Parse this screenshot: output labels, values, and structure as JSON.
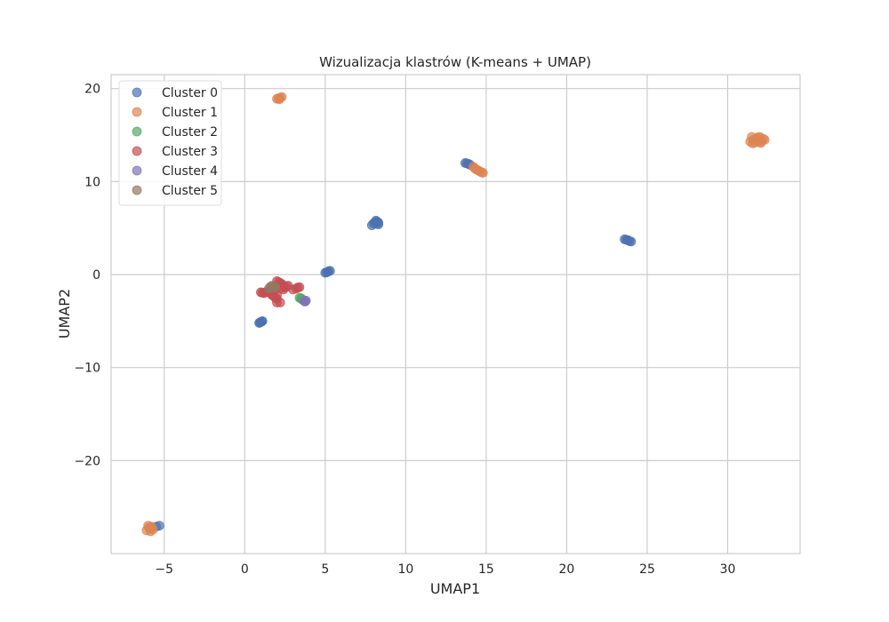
{
  "chart_data": {
    "type": "scatter",
    "title": "Wizualizacja klastrów (K-means + UMAP)",
    "xlabel": "UMAP1",
    "ylabel": "UMAP2",
    "xlim": [
      -8.3,
      34.5
    ],
    "ylim": [
      -30.0,
      21.5
    ],
    "xticks": [
      -5,
      0,
      5,
      10,
      15,
      20,
      25,
      30
    ],
    "yticks": [
      -20,
      -10,
      0,
      10,
      20
    ],
    "xtick_labels": [
      "−5",
      "0",
      "5",
      "10",
      "15",
      "20",
      "25",
      "30"
    ],
    "ytick_labels": [
      "−20",
      "−10",
      "0",
      "10",
      "20"
    ],
    "grid": true,
    "legend_position": "top-left",
    "series": [
      {
        "name": "Cluster 0",
        "color": "#4c72b0",
        "points": [
          [
            -5.3,
            -27.0
          ],
          [
            -5.5,
            -27.1
          ],
          [
            0.9,
            -5.2
          ],
          [
            1.0,
            -5.1
          ],
          [
            1.1,
            -5.0
          ],
          [
            0.95,
            -5.15
          ],
          [
            1.05,
            -5.05
          ],
          [
            5.0,
            0.2
          ],
          [
            5.1,
            0.25
          ],
          [
            5.2,
            0.35
          ],
          [
            5.3,
            0.4
          ],
          [
            5.15,
            0.3
          ],
          [
            7.9,
            5.3
          ],
          [
            8.0,
            5.5
          ],
          [
            8.1,
            5.6
          ],
          [
            8.2,
            5.7
          ],
          [
            8.3,
            5.6
          ],
          [
            8.25,
            5.5
          ],
          [
            8.15,
            5.8
          ],
          [
            8.3,
            5.4
          ],
          [
            13.7,
            12.0
          ],
          [
            13.8,
            11.95
          ],
          [
            13.9,
            11.9
          ],
          [
            14.0,
            11.8
          ],
          [
            23.6,
            3.8
          ],
          [
            23.7,
            3.75
          ],
          [
            23.8,
            3.7
          ],
          [
            23.9,
            3.6
          ],
          [
            24.0,
            3.55
          ]
        ]
      },
      {
        "name": "Cluster 1",
        "color": "#dd8452",
        "points": [
          [
            -6.1,
            -27.5
          ],
          [
            -5.9,
            -27.3
          ],
          [
            -5.8,
            -27.1
          ],
          [
            -6.0,
            -27.0
          ],
          [
            -5.7,
            -27.4
          ],
          [
            -5.85,
            -27.6
          ],
          [
            -5.95,
            -27.2
          ],
          [
            2.0,
            18.9
          ],
          [
            2.1,
            18.95
          ],
          [
            2.2,
            19.0
          ],
          [
            2.3,
            19.1
          ],
          [
            2.15,
            18.85
          ],
          [
            14.2,
            11.6
          ],
          [
            14.3,
            11.4
          ],
          [
            14.4,
            11.3
          ],
          [
            14.5,
            11.2
          ],
          [
            14.6,
            11.1
          ],
          [
            14.7,
            11.0
          ],
          [
            14.8,
            10.95
          ],
          [
            31.4,
            14.3
          ],
          [
            31.5,
            14.8
          ],
          [
            31.6,
            14.5
          ],
          [
            31.7,
            14.2
          ],
          [
            31.8,
            14.6
          ],
          [
            31.9,
            14.4
          ],
          [
            32.0,
            14.8
          ],
          [
            32.1,
            14.3
          ],
          [
            32.2,
            14.6
          ],
          [
            32.3,
            14.5
          ],
          [
            31.55,
            14.1
          ],
          [
            31.85,
            14.75
          ],
          [
            32.05,
            14.15
          ]
        ]
      },
      {
        "name": "Cluster 2",
        "color": "#55a868",
        "points": [
          [
            3.4,
            -2.5
          ],
          [
            3.5,
            -2.6
          ],
          [
            3.55,
            -2.65
          ],
          [
            3.6,
            -2.7
          ],
          [
            3.5,
            -2.55
          ]
        ]
      },
      {
        "name": "Cluster 3",
        "color": "#c44e52",
        "points": [
          [
            1.0,
            -1.9
          ],
          [
            1.1,
            -1.95
          ],
          [
            1.2,
            -2.0
          ],
          [
            1.3,
            -1.9
          ],
          [
            1.5,
            -1.8
          ],
          [
            1.6,
            -2.0
          ],
          [
            1.7,
            -2.2
          ],
          [
            1.8,
            -2.3
          ],
          [
            1.9,
            -2.5
          ],
          [
            2.0,
            -2.6
          ],
          [
            2.0,
            -3.0
          ],
          [
            2.2,
            -3.0
          ],
          [
            2.0,
            -0.7
          ],
          [
            2.1,
            -0.8
          ],
          [
            2.2,
            -0.9
          ],
          [
            2.3,
            -1.0
          ],
          [
            2.4,
            -1.2
          ],
          [
            2.5,
            -1.4
          ],
          [
            2.6,
            -1.3
          ],
          [
            2.7,
            -1.2
          ],
          [
            2.2,
            -1.5
          ],
          [
            2.4,
            -1.6
          ],
          [
            3.0,
            -1.6
          ],
          [
            3.2,
            -1.5
          ],
          [
            3.3,
            -1.4
          ],
          [
            3.4,
            -1.35
          ],
          [
            1.85,
            -1.6
          ],
          [
            2.0,
            -2.2
          ]
        ]
      },
      {
        "name": "Cluster 4",
        "color": "#8172b3",
        "points": [
          [
            3.7,
            -2.85
          ],
          [
            3.8,
            -2.8
          ],
          [
            3.75,
            -2.9
          ]
        ]
      },
      {
        "name": "Cluster 5",
        "color": "#937860",
        "points": [
          [
            1.5,
            -1.5
          ],
          [
            1.6,
            -1.3
          ],
          [
            1.7,
            -1.2
          ],
          [
            1.8,
            -1.4
          ],
          [
            1.9,
            -1.35
          ]
        ]
      }
    ]
  }
}
